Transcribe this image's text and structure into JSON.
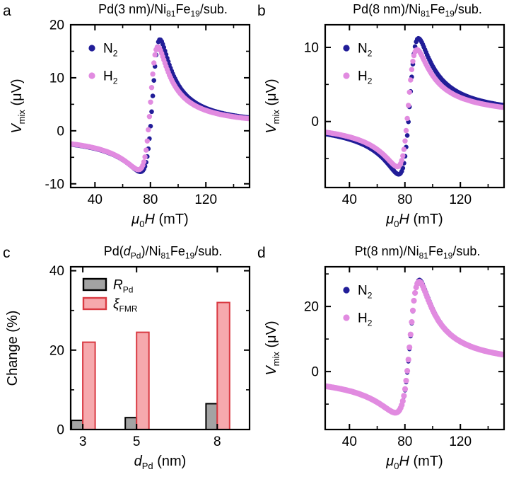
{
  "colors": {
    "navy": "#211d98",
    "violet": "#e18be0",
    "bar_gray_fill": "#a3a3a3",
    "bar_gray_stroke": "#000000",
    "bar_pink_fill": "#f6a9ad",
    "bar_pink_stroke": "#d93a42",
    "axis": "#000000",
    "text": "#000000",
    "background": "#ffffff"
  },
  "chart_data": [
    {
      "id": "a",
      "type": "scatter",
      "panel_label": "a",
      "title": [
        {
          "t": "Pd(3 nm)/Ni"
        },
        {
          "t": "81",
          "sub": true
        },
        {
          "t": "Fe"
        },
        {
          "t": "19",
          "sub": true
        },
        {
          "t": "/sub."
        }
      ],
      "xlabel": [
        {
          "t": "μ",
          "i": true
        },
        {
          "t": "0",
          "sub": true
        },
        {
          "t": "H",
          "i": true
        },
        {
          "t": " (mT)"
        }
      ],
      "ylabel": [
        {
          "t": "V",
          "i": true
        },
        {
          "t": "mix",
          "sub": true
        },
        {
          "t": " (μV)"
        }
      ],
      "xlim": [
        22.5,
        151.5
      ],
      "xticks": [
        40,
        80,
        120
      ],
      "xminor": [
        60,
        100,
        140
      ],
      "ylim": [
        -10.7,
        20
      ],
      "yticks": [
        -10,
        0,
        10,
        20
      ],
      "yminor": [
        -5,
        5,
        15
      ],
      "grid": false,
      "legend_position": "top-left",
      "series": [
        {
          "name": "N2",
          "label": [
            {
              "t": "N"
            },
            {
              "t": "2",
              "sub": true
            }
          ],
          "color_key": "navy",
          "marker_r": 3.3,
          "model": {
            "Hr": 82.5,
            "dH": 6.5,
            "Vs": 9.5,
            "Va": 23,
            "b0": 0,
            "b1": 0.0035,
            "step": 0.8
          },
          "readings": {
            "start": [
              23,
              -2.2
            ],
            "dip": [
              72,
              -7.6
            ],
            "peak": [
              86,
              17.2
            ],
            "end": [
              151,
              2.2
            ]
          }
        },
        {
          "name": "H2",
          "label": [
            {
              "t": "H"
            },
            {
              "t": "2",
              "sub": true
            }
          ],
          "color_key": "violet",
          "marker_r": 3.7,
          "model": {
            "Hr": 81,
            "dH": 6.5,
            "Vs": 8.5,
            "Va": 21.5,
            "b0": 0,
            "b1": 0.0035,
            "step": 0.8
          },
          "readings": {
            "start": [
              23,
              -2.3
            ],
            "dip": [
              71,
              -7.3
            ],
            "peak": [
              84.5,
              15.8
            ],
            "end": [
              151,
              2.0
            ]
          }
        }
      ]
    },
    {
      "id": "b",
      "type": "scatter",
      "panel_label": "b",
      "title": [
        {
          "t": "Pd(8 nm)/Ni"
        },
        {
          "t": "81",
          "sub": true
        },
        {
          "t": "Fe"
        },
        {
          "t": "19",
          "sub": true
        },
        {
          "t": "/sub."
        }
      ],
      "xlabel": [
        {
          "t": "μ",
          "i": true
        },
        {
          "t": "0",
          "sub": true
        },
        {
          "t": "H",
          "i": true
        },
        {
          "t": " (mT)"
        }
      ],
      "ylabel": [
        {
          "t": "V",
          "i": true
        },
        {
          "t": "mix",
          "sub": true
        },
        {
          "t": " (μV)"
        }
      ],
      "xlim": [
        22.5,
        151.5
      ],
      "xticks": [
        40,
        80,
        120
      ],
      "xminor": [
        60,
        100,
        140
      ],
      "ylim": [
        -8.9,
        13.05
      ],
      "yticks": [
        0,
        10
      ],
      "yminor": [
        -5,
        5
      ],
      "grid": false,
      "legend_position": "top-left",
      "series": [
        {
          "name": "N2",
          "label": [
            {
              "t": "N"
            },
            {
              "t": "2",
              "sub": true
            }
          ],
          "color_key": "navy",
          "marker_r": 3.3,
          "model": {
            "Hr": 84,
            "dH": 7,
            "Vs": 3.5,
            "Va": 18,
            "b0": 0.3,
            "b1": 0,
            "step": 0.8
          },
          "readings": {
            "start": [
              23,
              -1.6
            ],
            "dip": [
              75,
              -7.1
            ],
            "peak": [
              90,
              10.9
            ],
            "end": [
              151,
              2.2
            ]
          }
        },
        {
          "name": "H2",
          "label": [
            {
              "t": "H"
            },
            {
              "t": "2",
              "sub": true
            }
          ],
          "color_key": "violet",
          "marker_r": 3.7,
          "model": {
            "Hr": 83,
            "dH": 7,
            "Vs": 3,
            "Va": 15.5,
            "b0": 0.3,
            "b1": 0,
            "step": 0.8
          },
          "readings": {
            "start": [
              23,
              -1.5
            ],
            "dip": [
              74,
              -6.1
            ],
            "peak": [
              89,
              9.4
            ],
            "end": [
              151,
              2.0
            ]
          }
        }
      ]
    },
    {
      "id": "c",
      "type": "bar",
      "panel_label": "c",
      "title": [
        {
          "t": "Pd("
        },
        {
          "t": "d",
          "i": true
        },
        {
          "t": "Pd",
          "sub": true
        },
        {
          "t": ")/Ni"
        },
        {
          "t": "81",
          "sub": true
        },
        {
          "t": "Fe"
        },
        {
          "t": "19",
          "sub": true
        },
        {
          "t": "/sub."
        }
      ],
      "xlabel": [
        {
          "t": "d",
          "i": true
        },
        {
          "t": "Pd",
          "sub": true
        },
        {
          "t": " (nm)"
        }
      ],
      "ylabel": [
        {
          "t": "Change (%)"
        }
      ],
      "xlim": [
        2.55,
        9.2
      ],
      "xticks": [
        3,
        5,
        8
      ],
      "xminor": [],
      "ylim": [
        0,
        41
      ],
      "yticks": [
        0,
        20,
        40
      ],
      "yminor": [
        10,
        30
      ],
      "grid": false,
      "legend_position": "top-left",
      "categories": [
        3,
        5,
        8
      ],
      "series": [
        {
          "name": "R_Pd",
          "label": [
            {
              "t": "R",
              "i": true
            },
            {
              "t": "Pd",
              "sub": true
            }
          ],
          "fill_key": "bar_gray_fill",
          "stroke_key": "bar_gray_stroke",
          "values": [
            2.3,
            3.0,
            6.5
          ],
          "bar_width": 0.42,
          "side": -1
        },
        {
          "name": "xi_FMR",
          "label": [
            {
              "t": "ξ",
              "i": true
            },
            {
              "t": "FMR",
              "sub": true
            }
          ],
          "fill_key": "bar_pink_fill",
          "stroke_key": "bar_pink_stroke",
          "values": [
            22,
            24.5,
            32
          ],
          "bar_width": 0.46,
          "side": 1
        }
      ]
    },
    {
      "id": "d",
      "type": "scatter",
      "panel_label": "d",
      "title": [
        {
          "t": "Pt(8 nm)/Ni"
        },
        {
          "t": "81",
          "sub": true
        },
        {
          "t": "Fe"
        },
        {
          "t": "19",
          "sub": true
        },
        {
          "t": "/sub."
        }
      ],
      "xlabel": [
        {
          "t": "μ",
          "i": true
        },
        {
          "t": "0",
          "sub": true
        },
        {
          "t": "H",
          "i": true
        },
        {
          "t": " (mT)"
        }
      ],
      "ylabel": [
        {
          "t": "V",
          "i": true
        },
        {
          "t": "mix",
          "sub": true
        },
        {
          "t": " (μV)"
        }
      ],
      "xlim": [
        22.5,
        151.5
      ],
      "xticks": [
        40,
        80,
        120
      ],
      "xminor": [
        60,
        100,
        140
      ],
      "ylim": [
        -17.8,
        32.2
      ],
      "yticks": [
        0,
        20
      ],
      "yminor": [
        -10,
        10,
        30
      ],
      "grid": false,
      "legend_position": "top-left",
      "series": [
        {
          "name": "N2",
          "label": [
            {
              "t": "N"
            },
            {
              "t": "2",
              "sub": true
            }
          ],
          "color_key": "navy",
          "marker_r": 3.0,
          "model": {
            "Hr": 85,
            "dH": 8,
            "Vs": 15,
            "Va": 38,
            "b0": 0.26,
            "b1": 0.004,
            "step": 0.8
          },
          "readings": {
            "start": [
              23,
              -4.5
            ],
            "dip": [
              73,
              -12.8
            ],
            "peak": [
              90.5,
              28.4
            ],
            "end": [
              151,
              5.4
            ]
          }
        },
        {
          "name": "H2",
          "label": [
            {
              "t": "H"
            },
            {
              "t": "2",
              "sub": true
            }
          ],
          "color_key": "violet",
          "marker_r": 4.1,
          "model": {
            "Hr": 84.8,
            "dH": 8,
            "Vs": 14.5,
            "Va": 37.5,
            "b0": 0.26,
            "b1": 0.004,
            "step": 0.8
          },
          "readings": {
            "start": [
              23,
              -4.5
            ],
            "dip": [
              73,
              -12.7
            ],
            "peak": [
              90,
              28
            ],
            "end": [
              151,
              5.3
            ]
          }
        }
      ]
    }
  ]
}
